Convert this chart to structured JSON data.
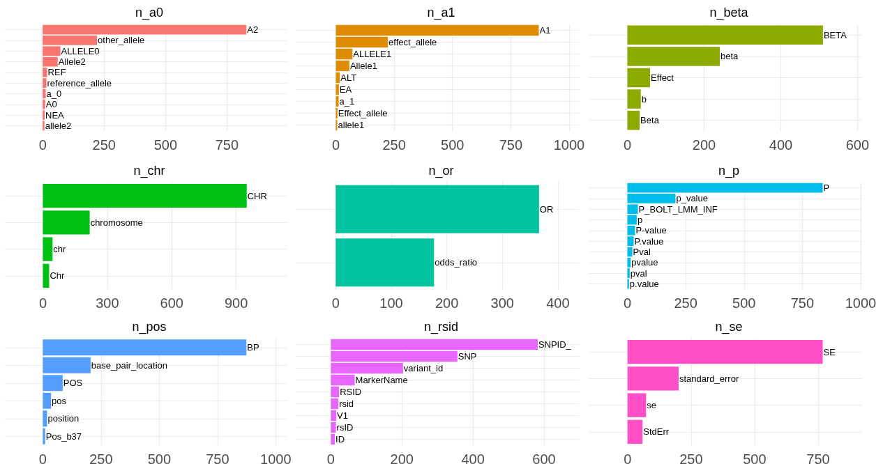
{
  "chart_data": [
    {
      "type": "bar",
      "orientation": "horizontal",
      "title": "n_a0",
      "categories": [
        "A2",
        "other_allele",
        "ALLELE0",
        "Allele2",
        "REF",
        "reference_allele",
        "a_0",
        "A0",
        "NEA",
        "allele2"
      ],
      "values": [
        829,
        221,
        72,
        61,
        18,
        15,
        12,
        10,
        8,
        7
      ],
      "color": "#f8766d",
      "xlim": [
        -154,
        993
      ],
      "xticks": [
        0,
        250,
        500,
        750
      ],
      "grid": true,
      "tick_labels": "x"
    },
    {
      "type": "bar",
      "orientation": "horizontal",
      "title": "n_a1",
      "categories": [
        "A1",
        "effect_allele",
        "ALLELE1",
        "Allele1",
        "ALT",
        "EA",
        "a_1",
        "Effect_allele",
        "allele1"
      ],
      "values": [
        870,
        223,
        71,
        58,
        17,
        13,
        12,
        7,
        6
      ],
      "color": "#de8c00",
      "xlim": [
        -172,
        1045
      ],
      "xticks": [
        0,
        250,
        500,
        750,
        1000
      ],
      "grid": true,
      "tick_labels": "x"
    },
    {
      "type": "bar",
      "orientation": "horizontal",
      "title": "n_beta",
      "categories": [
        "BETA",
        "beta",
        "Effect",
        "b",
        "Beta"
      ],
      "values": [
        510,
        241,
        59,
        35,
        32
      ],
      "color": "#8cab00",
      "xlim": [
        -101,
        612
      ],
      "xticks": [
        0,
        200,
        400,
        600
      ],
      "grid": true,
      "tick_labels": "x"
    },
    {
      "type": "bar",
      "orientation": "horizontal",
      "title": "n_chr",
      "categories": [
        "CHR",
        "chromosome",
        "chr",
        "Chr"
      ],
      "values": [
        949,
        218,
        45,
        29
      ],
      "color": "#00c011",
      "xlim": [
        -177,
        1135
      ],
      "xticks": [
        0,
        300,
        600,
        900
      ],
      "grid": true,
      "tick_labels": "x"
    },
    {
      "type": "bar",
      "orientation": "horizontal",
      "title": "n_or",
      "categories": [
        "OR",
        "odds_ratio"
      ],
      "values": [
        366,
        177
      ],
      "color": "#00c49f",
      "xlim": [
        -72,
        439
      ],
      "xticks": [
        0,
        100,
        200,
        300,
        400
      ],
      "grid": true,
      "tick_labels": "x"
    },
    {
      "type": "bar",
      "orientation": "horizontal",
      "title": "n_p",
      "categories": [
        "P",
        "p_value",
        "P_BOLT_LMM_INF",
        "p",
        "P-value",
        "P.value",
        "Pval",
        "pvalue",
        "pval",
        "p.value"
      ],
      "values": [
        837,
        206,
        45,
        40,
        33,
        27,
        21,
        14,
        10,
        7
      ],
      "color": "#00bce8",
      "xlim": [
        -166,
        1006
      ],
      "xticks": [
        0,
        250,
        500,
        750,
        1000
      ],
      "grid": true,
      "tick_labels": "x"
    },
    {
      "type": "bar",
      "orientation": "horizontal",
      "title": "n_pos",
      "categories": [
        "BP",
        "base_pair_location",
        "POS",
        "pos",
        "position",
        "Pos_b37"
      ],
      "values": [
        874,
        205,
        85,
        35,
        18,
        10
      ],
      "color": "#539dff",
      "xlim": [
        -163,
        1047
      ],
      "xticks": [
        0,
        250,
        500,
        750,
        1000
      ],
      "grid": true,
      "tick_labels": "x"
    },
    {
      "type": "bar",
      "orientation": "horizontal",
      "title": "n_rsid",
      "categories": [
        "SNPID_",
        "SNP",
        "variant_id",
        "MarkerName",
        "RSID",
        "rsid",
        "V1",
        "rsID",
        "ID"
      ],
      "values": [
        582,
        356,
        203,
        67,
        23,
        21,
        15,
        14,
        11
      ],
      "color": "#e766fb",
      "xlim": [
        -99,
        700
      ],
      "xticks": [
        0,
        200,
        400,
        600
      ],
      "grid": true,
      "tick_labels": "x"
    },
    {
      "type": "bar",
      "orientation": "horizontal",
      "title": "n_se",
      "categories": [
        "SE",
        "standard_error",
        "se",
        "StdErr"
      ],
      "values": [
        768,
        201,
        73,
        59
      ],
      "color": "#ff4fc6",
      "xlim": [
        -153,
        923
      ],
      "xticks": [
        0,
        250,
        500,
        750
      ],
      "grid": true,
      "tick_labels": "x"
    }
  ]
}
